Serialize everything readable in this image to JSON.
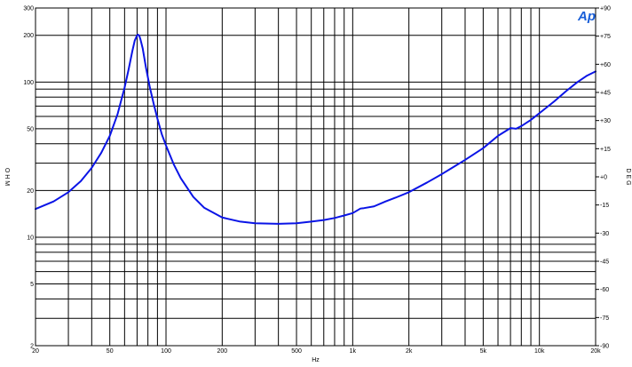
{
  "logo": {
    "text": "Ap",
    "color": "#1a5fd8"
  },
  "chart_data": {
    "type": "line",
    "title": "",
    "xlabel": "Hz",
    "ylabel": "O H M",
    "y2label": "D E G",
    "xscale": "log",
    "yscale": "log",
    "xlim": [
      20,
      20000
    ],
    "ylim": [
      2,
      300
    ],
    "y2lim": [
      -90,
      90
    ],
    "grid": true,
    "legend": "none",
    "line_color": "#0a14e6",
    "x_ticks": [
      {
        "value": 20,
        "label": "20"
      },
      {
        "value": 50,
        "label": "50"
      },
      {
        "value": 100,
        "label": "100"
      },
      {
        "value": 200,
        "label": "200"
      },
      {
        "value": 500,
        "label": "500"
      },
      {
        "value": 1000,
        "label": "1k"
      },
      {
        "value": 2000,
        "label": "2k"
      },
      {
        "value": 5000,
        "label": "5k"
      },
      {
        "value": 10000,
        "label": "10k"
      },
      {
        "value": 20000,
        "label": "20k"
      }
    ],
    "y_ticks": [
      {
        "value": 2,
        "label": "2"
      },
      {
        "value": 5,
        "label": "5"
      },
      {
        "value": 10,
        "label": "10"
      },
      {
        "value": 20,
        "label": "20"
      },
      {
        "value": 50,
        "label": "50"
      },
      {
        "value": 100,
        "label": "100"
      },
      {
        "value": 200,
        "label": "200"
      },
      {
        "value": 300,
        "label": "300"
      }
    ],
    "y2_ticks": [
      {
        "value": 90,
        "label": "+90"
      },
      {
        "value": 75,
        "label": "+75"
      },
      {
        "value": 60,
        "label": "+60"
      },
      {
        "value": 45,
        "label": "+45"
      },
      {
        "value": 30,
        "label": "+30"
      },
      {
        "value": 15,
        "label": "+15"
      },
      {
        "value": 0,
        "label": "+0"
      },
      {
        "value": -15,
        "label": "-15"
      },
      {
        "value": -30,
        "label": "-30"
      },
      {
        "value": -45,
        "label": "-45"
      },
      {
        "value": -60,
        "label": "-60"
      },
      {
        "value": -75,
        "label": "-75"
      },
      {
        "value": -90,
        "label": "-90"
      }
    ],
    "series": [
      {
        "x": [
          20,
          25,
          30,
          35,
          40,
          45,
          50,
          55,
          60,
          63,
          66,
          68,
          70,
          71,
          72,
          73,
          75,
          78,
          82,
          86,
          90,
          95,
          100,
          110,
          120,
          140,
          160,
          200,
          250,
          300,
          400,
          500,
          600,
          700,
          800,
          900,
          1000,
          1100,
          1150,
          1300,
          1500,
          1700,
          2000,
          2500,
          3000,
          4000,
          5000,
          6000,
          7000,
          7500,
          8000,
          9000,
          10000,
          12000,
          14000,
          16000,
          18000,
          20000
        ],
        "y": [
          15.2,
          17.0,
          19.5,
          23.0,
          28.0,
          35.0,
          45.0,
          62.0,
          92.0,
          120.0,
          158.0,
          185.0,
          200.0,
          202.0,
          198.0,
          188.0,
          165.0,
          125.0,
          92.0,
          72.0,
          58.0,
          46.0,
          39.0,
          29.5,
          24.0,
          18.2,
          15.5,
          13.4,
          12.6,
          12.3,
          12.2,
          12.3,
          12.6,
          12.9,
          13.3,
          13.8,
          14.3,
          15.3,
          15.4,
          15.8,
          17.0,
          18.0,
          19.5,
          22.5,
          25.5,
          31.5,
          37.5,
          45.0,
          50.5,
          50.0,
          52.0,
          57.0,
          63.0,
          75.0,
          88.0,
          100.0,
          110.0,
          117.0
        ]
      }
    ]
  }
}
